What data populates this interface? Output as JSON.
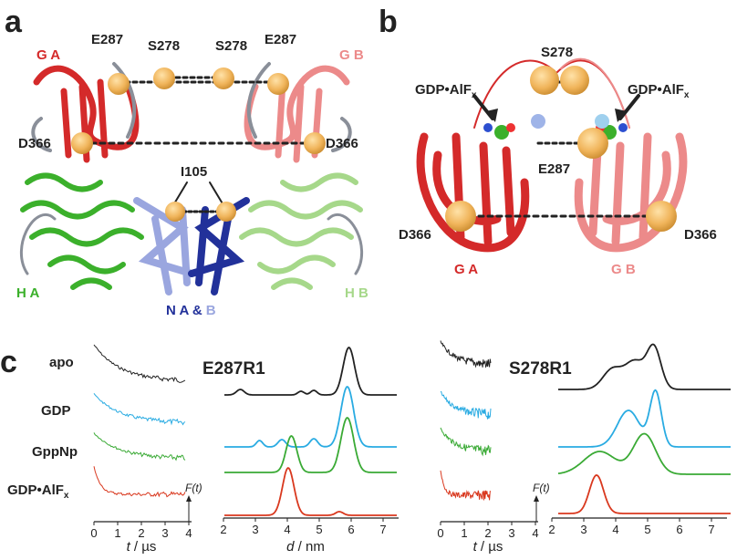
{
  "panel_a": {
    "label": "a",
    "group_a": "G A",
    "group_b": "G B",
    "residues": [
      "E287",
      "S278",
      "S278",
      "E287",
      "D366",
      "D366",
      "I105"
    ],
    "helical_a": "H A",
    "helical_b": "H B",
    "nucleotide_a": "N A &",
    "nucleotide_b": "B"
  },
  "panel_b": {
    "label": "b",
    "s278": "S278",
    "ligand": "GDP•AlF",
    "ligand_subscript": "x",
    "e287": "E287",
    "d366": "D366",
    "group_a": "G A",
    "group_b": "G B"
  },
  "panel_c": {
    "label": "c",
    "states": [
      "apo",
      "GDP",
      "GppNp",
      "GDP•AlF"
    ],
    "state_subscript": "x",
    "sites": [
      "E287R1",
      "S278R1"
    ],
    "time_ticks": [
      0,
      1,
      2,
      3,
      4
    ],
    "distance_ticks": [
      2,
      3,
      4,
      5,
      6,
      7
    ],
    "time_var": "t",
    "time_unit": " / µs",
    "distance_var": "d",
    "distance_unit": " / nm",
    "ft_label": "F(t)"
  }
}
